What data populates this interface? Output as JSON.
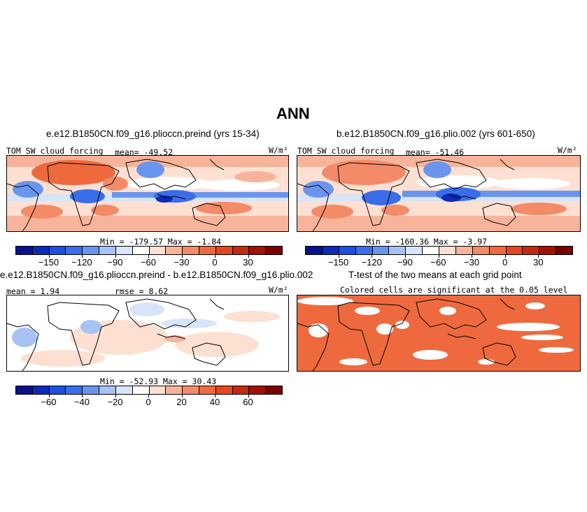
{
  "page": {
    "title": "ANN"
  },
  "panels": [
    {
      "title": "e.e12.B1850CN.f09_g16.plioccn.preind (yrs 15-34)",
      "left_label": "TOM SW cloud forcing",
      "mean_label": "mean= -49.52",
      "units": "W/m²",
      "minmax": "Min = -179.57  Max =  -1.84"
    },
    {
      "title": "b.e12.B1850CN.f09_g16.plio.002 (yrs 601-650)",
      "left_label": "TOM SW cloud forcing",
      "mean_label": "mean= -51.46",
      "units": "W/m²",
      "minmax": "Min = -160.36  Max =  -3.97"
    },
    {
      "title": "e.e12.B1850CN.f09_g16.plioccn.preind - b.e12.B1850CN.f09_g16.plio.002",
      "mean_label": "mean =  1.94",
      "rmse_label": "rmse =   8.62",
      "units": "W/m²",
      "minmax": "Min = -52.93  Max =  30.43"
    },
    {
      "title": "T-test of the two means at each grid point",
      "subtitle": "Colored cells are significant at the 0.05 level"
    }
  ],
  "colorbars": {
    "colors": [
      "#08108c",
      "#0a2ab8",
      "#1f4fe0",
      "#3a6ee8",
      "#6a95ee",
      "#a9c2f4",
      "#d8e4f8",
      "#ffffff",
      "#fde0d2",
      "#f8b49a",
      "#f38a68",
      "#ee6a3e",
      "#e4461e",
      "#c62a0e",
      "#a01204",
      "#7a0000"
    ],
    "abs_ticks": [
      {
        "label": "-150",
        "pos": 0.125
      },
      {
        "label": "-120",
        "pos": 0.25
      },
      {
        "label": "-90",
        "pos": 0.375
      },
      {
        "label": "-60",
        "pos": 0.5
      },
      {
        "label": "-30",
        "pos": 0.625
      },
      {
        "label": "0",
        "pos": 0.75
      },
      {
        "label": "30",
        "pos": 0.875
      }
    ],
    "diff_ticks": [
      {
        "label": "-60",
        "pos": 0.125
      },
      {
        "label": "-40",
        "pos": 0.25
      },
      {
        "label": "-20",
        "pos": 0.375
      },
      {
        "label": "0",
        "pos": 0.5
      },
      {
        "label": "20",
        "pos": 0.625
      },
      {
        "label": "40",
        "pos": 0.75
      },
      {
        "label": "60",
        "pos": 0.875
      }
    ]
  }
}
